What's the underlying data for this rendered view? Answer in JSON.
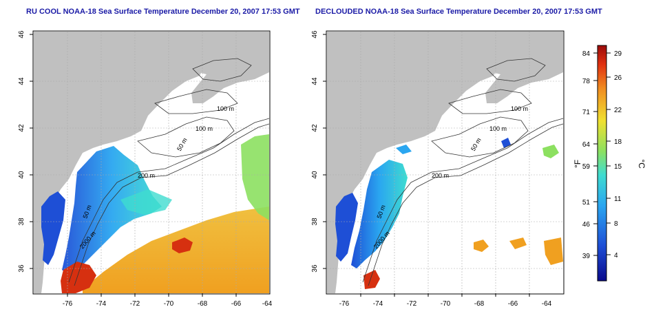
{
  "panels": [
    {
      "title": "RU COOL NOAA-18 Sea Surface Temperature December 20, 2007 17:53 GMT",
      "x_ticks": [
        "-76",
        "-74",
        "-72",
        "-70",
        "-68",
        "-66",
        "-64"
      ],
      "y_ticks": [
        "36",
        "38",
        "40",
        "42",
        "44",
        "46"
      ],
      "contour_labels": [
        "100 m",
        "100 m",
        "50 m",
        "200 m",
        "50 m",
        "2000 m"
      ]
    },
    {
      "title": "DECLOUDED NOAA-18 Sea Surface Temperature December 20, 2007 17:53 GMT",
      "x_ticks": [
        "-76",
        "-74",
        "-72",
        "-70",
        "-68",
        "-66",
        "-64"
      ],
      "y_ticks": [
        "36",
        "38",
        "40",
        "42",
        "44",
        "46"
      ],
      "contour_labels": [
        "100 m",
        "100 m",
        "50 m",
        "200 m",
        "50 m",
        "2000 m"
      ]
    }
  ],
  "colorbar": {
    "fahrenheit_label": "°F",
    "celsius_label": "°C",
    "fahrenheit_ticks": [
      "84",
      "78",
      "71",
      "64",
      "59",
      "51",
      "46",
      "39"
    ],
    "celsius_ticks": [
      "29",
      "26",
      "22",
      "18",
      "15",
      "11",
      "8",
      "4"
    ]
  },
  "colors": {
    "land": "#c0c0c0",
    "ocean_nodata": "#ffffff",
    "title": "#1a1aa6",
    "grid": "#aaaaaa",
    "contour": "#333333",
    "sst_cold": "#1e4fd6",
    "sst_mid": "#3fb8e8",
    "sst_warm": "#f0a020",
    "sst_hot": "#d63010"
  }
}
